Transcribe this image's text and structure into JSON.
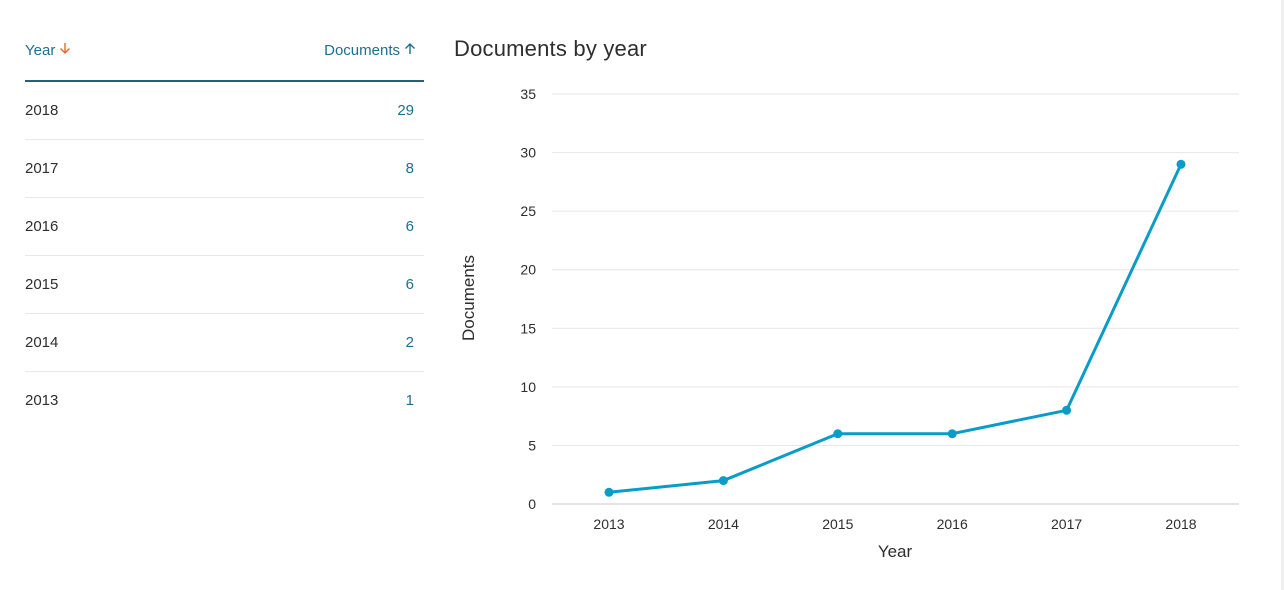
{
  "table": {
    "year_header": "Year",
    "docs_header": "Documents",
    "rows": [
      {
        "year": "2018",
        "docs": "29"
      },
      {
        "year": "2017",
        "docs": "8"
      },
      {
        "year": "2016",
        "docs": "6"
      },
      {
        "year": "2015",
        "docs": "6"
      },
      {
        "year": "2014",
        "docs": "2"
      },
      {
        "year": "2013",
        "docs": "1"
      }
    ],
    "year_sort_icon": "arrow-down-icon",
    "docs_sort_icon": "arrow-up-icon",
    "colors": {
      "header_text": "#1d6f8c",
      "year_sort_arrow": "#e06c2b",
      "divider": "#1d6577"
    }
  },
  "chart_data": {
    "type": "line",
    "title": "Documents by year",
    "xlabel": "Year",
    "ylabel": "Documents",
    "categories": [
      "2013",
      "2014",
      "2015",
      "2016",
      "2017",
      "2018"
    ],
    "values": [
      1,
      2,
      6,
      6,
      8,
      29
    ],
    "ylim": [
      0,
      35
    ],
    "yticks": [
      0,
      5,
      10,
      15,
      20,
      25,
      30,
      35
    ],
    "grid": true,
    "line_color": "#0a9cc9"
  }
}
